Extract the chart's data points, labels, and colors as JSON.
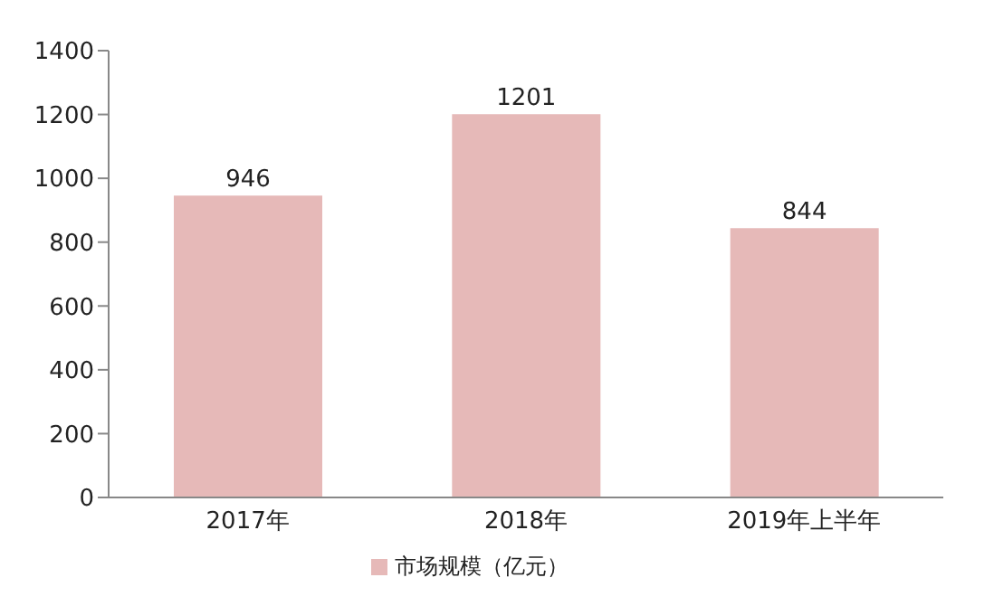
{
  "chart_data": {
    "type": "bar",
    "categories": [
      "2017年",
      "2018年",
      "2019年上半年"
    ],
    "series": [
      {
        "name": "市场规模（亿元）",
        "color": "#e6b9b8",
        "values": [
          946,
          1201,
          844
        ]
      }
    ],
    "ylim": [
      0,
      1400
    ],
    "yticks": [
      0,
      200,
      400,
      600,
      800,
      1000,
      1200,
      1400
    ],
    "grid": false,
    "legend": "bottom",
    "data_labels": true
  }
}
